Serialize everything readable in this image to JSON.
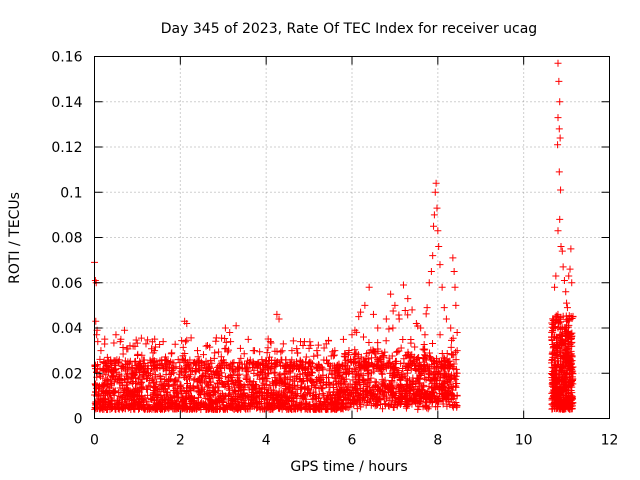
{
  "chart_data": {
    "type": "scatter",
    "title": "Day 345 of 2023, Rate Of TEC Index for receiver ucag",
    "xlabel": "GPS time / hours",
    "ylabel": "ROTI / TECUs",
    "xlim": [
      0,
      12
    ],
    "ylim": [
      0,
      0.16
    ],
    "xticks": [
      0,
      2,
      4,
      6,
      8,
      10,
      12
    ],
    "xtick_labels": [
      "0",
      "2",
      "4",
      "6",
      "8",
      "10",
      "12"
    ],
    "yticks": [
      0,
      0.02,
      0.04,
      0.06,
      0.08,
      0.1,
      0.12,
      0.14,
      0.16
    ],
    "ytick_labels": [
      "0",
      "0.02",
      "0.04",
      "0.06",
      "0.08",
      "0.1",
      "0.12",
      "0.14",
      "0.16"
    ],
    "grid": true,
    "marker": "+",
    "color": "#ff0000",
    "series": [
      {
        "name": "ROTI",
        "points": [
          [
            0.0,
            0.069
          ],
          [
            0.02,
            0.061
          ],
          [
            0.04,
            0.06
          ],
          [
            0.03,
            0.043
          ],
          [
            0.06,
            0.039
          ],
          [
            0.05,
            0.037
          ],
          [
            0.15,
            0.03
          ],
          [
            0.3,
            0.027
          ],
          [
            0.5,
            0.037
          ],
          [
            0.6,
            0.034
          ],
          [
            0.7,
            0.039
          ],
          [
            0.9,
            0.032
          ],
          [
            1.2,
            0.033
          ],
          [
            1.4,
            0.03
          ],
          [
            1.6,
            0.034
          ],
          [
            1.8,
            0.029
          ],
          [
            1.95,
            0.026
          ],
          [
            2.1,
            0.043
          ],
          [
            2.15,
            0.042
          ],
          [
            2.4,
            0.03
          ],
          [
            2.6,
            0.032
          ],
          [
            2.8,
            0.029
          ],
          [
            3.05,
            0.04
          ],
          [
            3.15,
            0.038
          ],
          [
            3.3,
            0.041
          ],
          [
            3.4,
            0.031
          ],
          [
            3.7,
            0.03
          ],
          [
            3.9,
            0.026
          ],
          [
            4.1,
            0.034
          ],
          [
            4.25,
            0.046
          ],
          [
            4.3,
            0.044
          ],
          [
            4.4,
            0.033
          ],
          [
            4.6,
            0.03
          ],
          [
            4.8,
            0.034
          ],
          [
            5.0,
            0.031
          ],
          [
            5.2,
            0.028
          ],
          [
            5.4,
            0.033
          ],
          [
            5.6,
            0.03
          ],
          [
            5.8,
            0.035
          ],
          [
            6.0,
            0.037
          ],
          [
            6.2,
            0.047
          ],
          [
            6.3,
            0.05
          ],
          [
            6.4,
            0.058
          ],
          [
            6.5,
            0.046
          ],
          [
            6.6,
            0.04
          ],
          [
            6.8,
            0.044
          ],
          [
            6.9,
            0.055
          ],
          [
            7.0,
            0.05
          ],
          [
            7.1,
            0.044
          ],
          [
            7.2,
            0.059
          ],
          [
            7.3,
            0.053
          ],
          [
            7.4,
            0.048
          ],
          [
            7.5,
            0.042
          ],
          [
            7.6,
            0.04
          ],
          [
            7.7,
            0.037
          ],
          [
            7.75,
            0.049
          ],
          [
            7.8,
            0.06
          ],
          [
            7.85,
            0.065
          ],
          [
            7.88,
            0.072
          ],
          [
            7.9,
            0.085
          ],
          [
            7.92,
            0.09
          ],
          [
            7.94,
            0.1
          ],
          [
            7.96,
            0.104
          ],
          [
            7.98,
            0.093
          ],
          [
            8.0,
            0.083
          ],
          [
            8.02,
            0.076
          ],
          [
            8.05,
            0.068
          ],
          [
            8.1,
            0.058
          ],
          [
            8.15,
            0.049
          ],
          [
            8.2,
            0.044
          ],
          [
            8.3,
            0.04
          ],
          [
            8.35,
            0.071
          ],
          [
            8.38,
            0.065
          ],
          [
            8.4,
            0.058
          ],
          [
            8.42,
            0.05
          ],
          [
            8.45,
            0.038
          ],
          [
            8.45,
            0.03
          ],
          [
            8.45,
            0.02
          ],
          [
            8.45,
            0.01
          ],
          [
            8.44,
            0.005
          ],
          [
            10.7,
            0.044
          ],
          [
            10.72,
            0.058
          ],
          [
            10.75,
            0.063
          ],
          [
            10.78,
            0.045
          ],
          [
            10.8,
            0.157
          ],
          [
            10.82,
            0.149
          ],
          [
            10.84,
            0.14
          ],
          [
            10.8,
            0.133
          ],
          [
            10.83,
            0.128
          ],
          [
            10.85,
            0.124
          ],
          [
            10.79,
            0.121
          ],
          [
            10.83,
            0.109
          ],
          [
            10.86,
            0.101
          ],
          [
            10.84,
            0.088
          ],
          [
            10.8,
            0.083
          ],
          [
            10.87,
            0.076
          ],
          [
            10.9,
            0.074
          ],
          [
            10.92,
            0.067
          ],
          [
            10.95,
            0.061
          ],
          [
            10.98,
            0.056
          ],
          [
            11.0,
            0.051
          ],
          [
            11.02,
            0.049
          ],
          [
            11.05,
            0.063
          ],
          [
            11.08,
            0.066
          ],
          [
            11.1,
            0.075
          ],
          [
            11.12,
            0.06
          ],
          [
            11.15,
            0.045
          ],
          [
            11.1,
            0.035
          ],
          [
            11.05,
            0.025
          ],
          [
            11.0,
            0.015
          ],
          [
            10.95,
            0.008
          ],
          [
            10.9,
            0.005
          ],
          [
            10.85,
            0.006
          ],
          [
            10.75,
            0.007
          ],
          [
            10.7,
            0.01
          ],
          [
            10.72,
            0.02
          ],
          [
            10.75,
            0.03
          ],
          [
            10.8,
            0.04
          ],
          [
            11.12,
            0.01
          ],
          [
            11.14,
            0.02
          ]
        ]
      }
    ],
    "dense_bands": [
      {
        "x_range": [
          0.0,
          8.45
        ],
        "y_range": [
          0.003,
          0.03
        ],
        "note": "continuous dense cluster of ROTI markers"
      },
      {
        "x_range": [
          10.65,
          11.15
        ],
        "y_range": [
          0.003,
          0.05
        ],
        "note": "dense cluster of ROTI markers"
      }
    ]
  }
}
